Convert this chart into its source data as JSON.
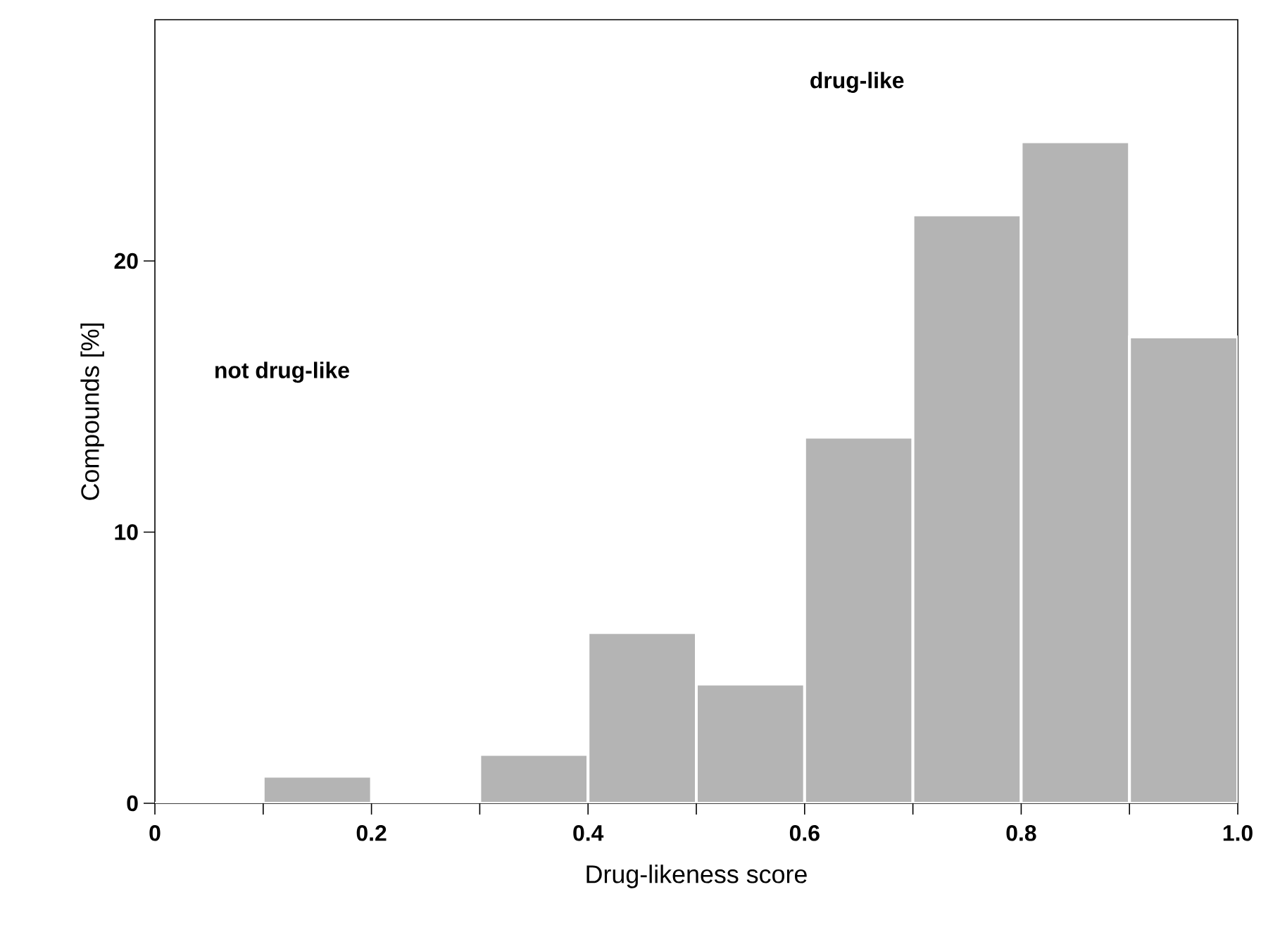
{
  "chart_data": {
    "type": "histogram",
    "xlabel": "Drug-likeness score",
    "ylabel": "Compounds [%]",
    "annotations": [
      "not drug-like",
      "drug-like"
    ],
    "bins": [
      0,
      0.1,
      0.2,
      0.3,
      0.4,
      0.5,
      0.6,
      0.7,
      0.8,
      0.9,
      1.0
    ],
    "values": [
      0,
      1.0,
      0,
      1.8,
      6.3,
      4.4,
      13.5,
      21.7,
      24.4,
      17.2
    ],
    "color": "#b4b4b4",
    "xlim": [
      0,
      1.0
    ],
    "ylim": [
      0,
      28.9
    ],
    "xticks": [
      0,
      {
        "value": 0.1,
        "label": null
      },
      0.2,
      {
        "value": 0.3,
        "label": null
      },
      0.4,
      {
        "value": 0.5,
        "label": null
      },
      0.6,
      {
        "value": 0.7,
        "label": null
      },
      0.8,
      {
        "value": 0.9,
        "label": null
      },
      {
        "value": 1.0,
        "label": "1.0"
      }
    ],
    "yticks": [
      0,
      10,
      20
    ],
    "grid": false
  }
}
